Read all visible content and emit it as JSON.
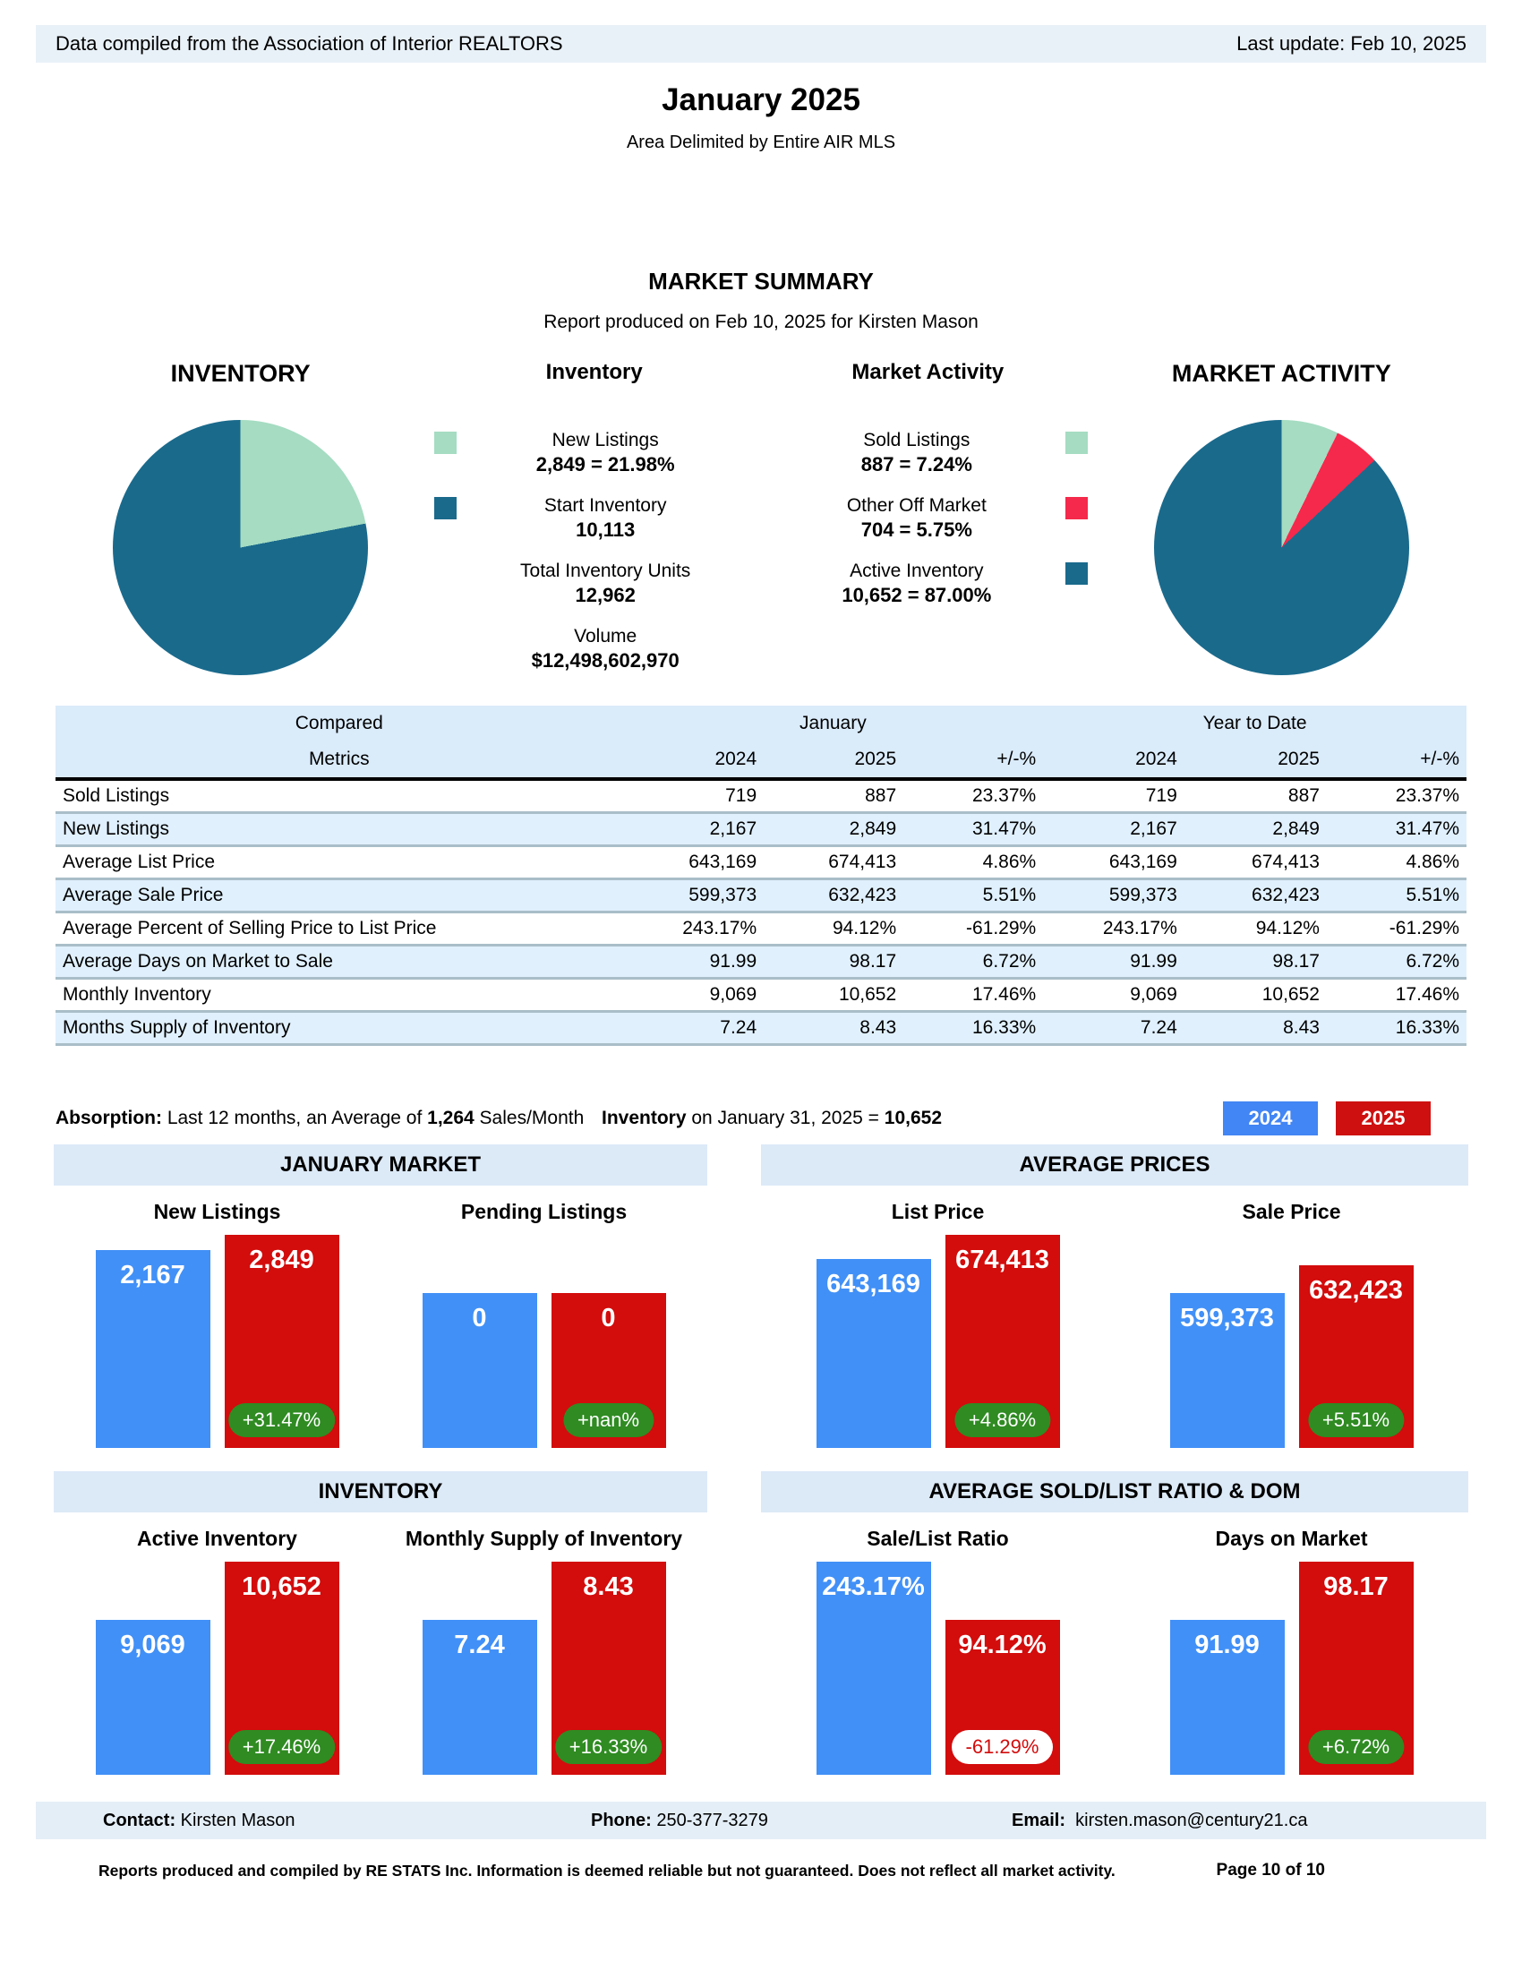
{
  "topbar": {
    "left": "Data compiled from the Association of Interior REALTORS",
    "right": "Last update: Feb 10, 2025"
  },
  "title": "January 2025",
  "subtitle": "Area Delimited by Entire AIR MLS",
  "summary_title": "MARKET SUMMARY",
  "summary_subtitle": "Report produced on Feb 10, 2025 for Kirsten Mason",
  "colors": {
    "teal": "#1A6A8C",
    "light_green": "#A5DCC2",
    "pie_red": "#F5294B",
    "bar_blue": "#4190F7",
    "bar_red": "#D30C0C",
    "chip_blue": "#4285F4",
    "chip_red": "#CE1010",
    "pill_green": "#2F8B22"
  },
  "chart_data": [
    {
      "type": "pie",
      "title": "INVENTORY",
      "legend_title": "Inventory",
      "legend_square": "left",
      "slices": [
        {
          "label": "New Listings",
          "value": 2849,
          "pct": 21.98,
          "value_text": "2,849 = 21.98%",
          "color": "#A5DCC2"
        },
        {
          "label": "Start Inventory",
          "value": 10113,
          "pct": 78.02,
          "value_text": "10,113",
          "color": "#1A6A8C"
        }
      ],
      "totals": [
        {
          "label": "Total Inventory Units",
          "value_text": "12,962"
        },
        {
          "label": "Volume",
          "value_text": "$12,498,602,970"
        }
      ]
    },
    {
      "type": "pie",
      "title": "MARKET ACTIVITY",
      "legend_title": "Market Activity",
      "legend_square": "right",
      "slices": [
        {
          "label": "Sold Listings",
          "value": 887,
          "pct": 7.24,
          "value_text": "887 = 7.24%",
          "color": "#A5DCC2"
        },
        {
          "label": "Other Off Market",
          "value": 704,
          "pct": 5.75,
          "value_text": "704 = 5.75%",
          "color": "#F5294B"
        },
        {
          "label": "Active Inventory",
          "value": 10652,
          "pct": 87.0,
          "value_text": "10,652 = 87.00%",
          "color": "#1A6A8C"
        }
      ]
    },
    {
      "type": "table",
      "group_headers": [
        "Compared",
        "January",
        "Year to Date"
      ],
      "sub_headers": [
        "Metrics",
        "2024",
        "2025",
        "+/-%",
        "2024",
        "2025",
        "+/-%"
      ],
      "rows": [
        [
          "Sold Listings",
          "719",
          "887",
          "23.37%",
          "719",
          "887",
          "23.37%"
        ],
        [
          "New Listings",
          "2,167",
          "2,849",
          "31.47%",
          "2,167",
          "2,849",
          "31.47%"
        ],
        [
          "Average List Price",
          "643,169",
          "674,413",
          "4.86%",
          "643,169",
          "674,413",
          "4.86%"
        ],
        [
          "Average Sale Price",
          "599,373",
          "632,423",
          "5.51%",
          "599,373",
          "632,423",
          "5.51%"
        ],
        [
          "Average Percent of Selling Price to List Price",
          "243.17%",
          "94.12%",
          "-61.29%",
          "243.17%",
          "94.12%",
          "-61.29%"
        ],
        [
          "Average Days on Market to Sale",
          "91.99",
          "98.17",
          "6.72%",
          "91.99",
          "98.17",
          "6.72%"
        ],
        [
          "Monthly Inventory",
          "9,069",
          "10,652",
          "17.46%",
          "9,069",
          "10,652",
          "17.46%"
        ],
        [
          "Months Supply of Inventory",
          "7.24",
          "8.43",
          "16.33%",
          "7.24",
          "8.43",
          "16.33%"
        ]
      ]
    },
    {
      "type": "bar",
      "legend": [
        "2024",
        "2025"
      ],
      "series_colors": [
        "#4190F7",
        "#D30C0C"
      ],
      "sections": [
        {
          "header": "JANUARY MARKET",
          "groups": [
            {
              "title": "New Listings",
              "values": [
                2167,
                2849
              ],
              "labels": [
                "2,167",
                "2,849"
              ],
              "change": "+31.47%",
              "change_negative": false,
              "heights_pct": [
                92,
                99
              ]
            },
            {
              "title": "Pending Listings",
              "values": [
                0,
                0
              ],
              "labels": [
                "0",
                "0"
              ],
              "change": "+nan%",
              "change_negative": false,
              "heights_pct": [
                72,
                72
              ]
            }
          ]
        },
        {
          "header": "AVERAGE PRICES",
          "groups": [
            {
              "title": "List Price",
              "values": [
                643169,
                674413
              ],
              "labels": [
                "643,169",
                "674,413"
              ],
              "change": "+4.86%",
              "change_negative": false,
              "heights_pct": [
                88,
                99
              ]
            },
            {
              "title": "Sale Price",
              "values": [
                599373,
                632423
              ],
              "labels": [
                "599,373",
                "632,423"
              ],
              "change": "+5.51%",
              "change_negative": false,
              "heights_pct": [
                72,
                85
              ]
            }
          ]
        },
        {
          "header": "INVENTORY",
          "groups": [
            {
              "title": "Active Inventory",
              "values": [
                9069,
                10652
              ],
              "labels": [
                "9,069",
                "10,652"
              ],
              "change": "+17.46%",
              "change_negative": false,
              "heights_pct": [
                72,
                99
              ]
            },
            {
              "title": "Monthly Supply of Inventory",
              "values": [
                7.24,
                8.43
              ],
              "labels": [
                "7.24",
                "8.43"
              ],
              "change": "+16.33%",
              "change_negative": false,
              "heights_pct": [
                72,
                99
              ]
            }
          ]
        },
        {
          "header": "AVERAGE SOLD/LIST RATIO & DOM",
          "groups": [
            {
              "title": "Sale/List Ratio",
              "values": [
                243.17,
                94.12
              ],
              "labels": [
                "243.17%",
                "94.12%"
              ],
              "change": "-61.29%",
              "change_negative": true,
              "heights_pct": [
                99,
                72
              ]
            },
            {
              "title": "Days on Market",
              "values": [
                91.99,
                98.17
              ],
              "labels": [
                "91.99",
                "98.17"
              ],
              "change": "+6.72%",
              "change_negative": false,
              "heights_pct": [
                72,
                99
              ]
            }
          ]
        }
      ]
    }
  ],
  "absorption": {
    "label": "Absorption:",
    "text": " Last 12 months, an Average of ",
    "value": "1,264",
    "suffix": " Sales/Month"
  },
  "inventory_line": {
    "label": "Inventory",
    "text": " on January 31, 2025 = ",
    "value": "10,652"
  },
  "year_legend": [
    "2024",
    "2025"
  ],
  "footer": {
    "contact_label": "Contact:",
    "contact": "Kirsten Mason",
    "phone_label": "Phone:",
    "phone": "250-377-3279",
    "email_label": "Email:",
    "email": "kirsten.mason@century21.ca",
    "disclaimer": "Reports produced and compiled by RE STATS Inc. Information is deemed reliable but not guaranteed. Does not reflect all market activity.",
    "page": "Page 10 of 10"
  }
}
